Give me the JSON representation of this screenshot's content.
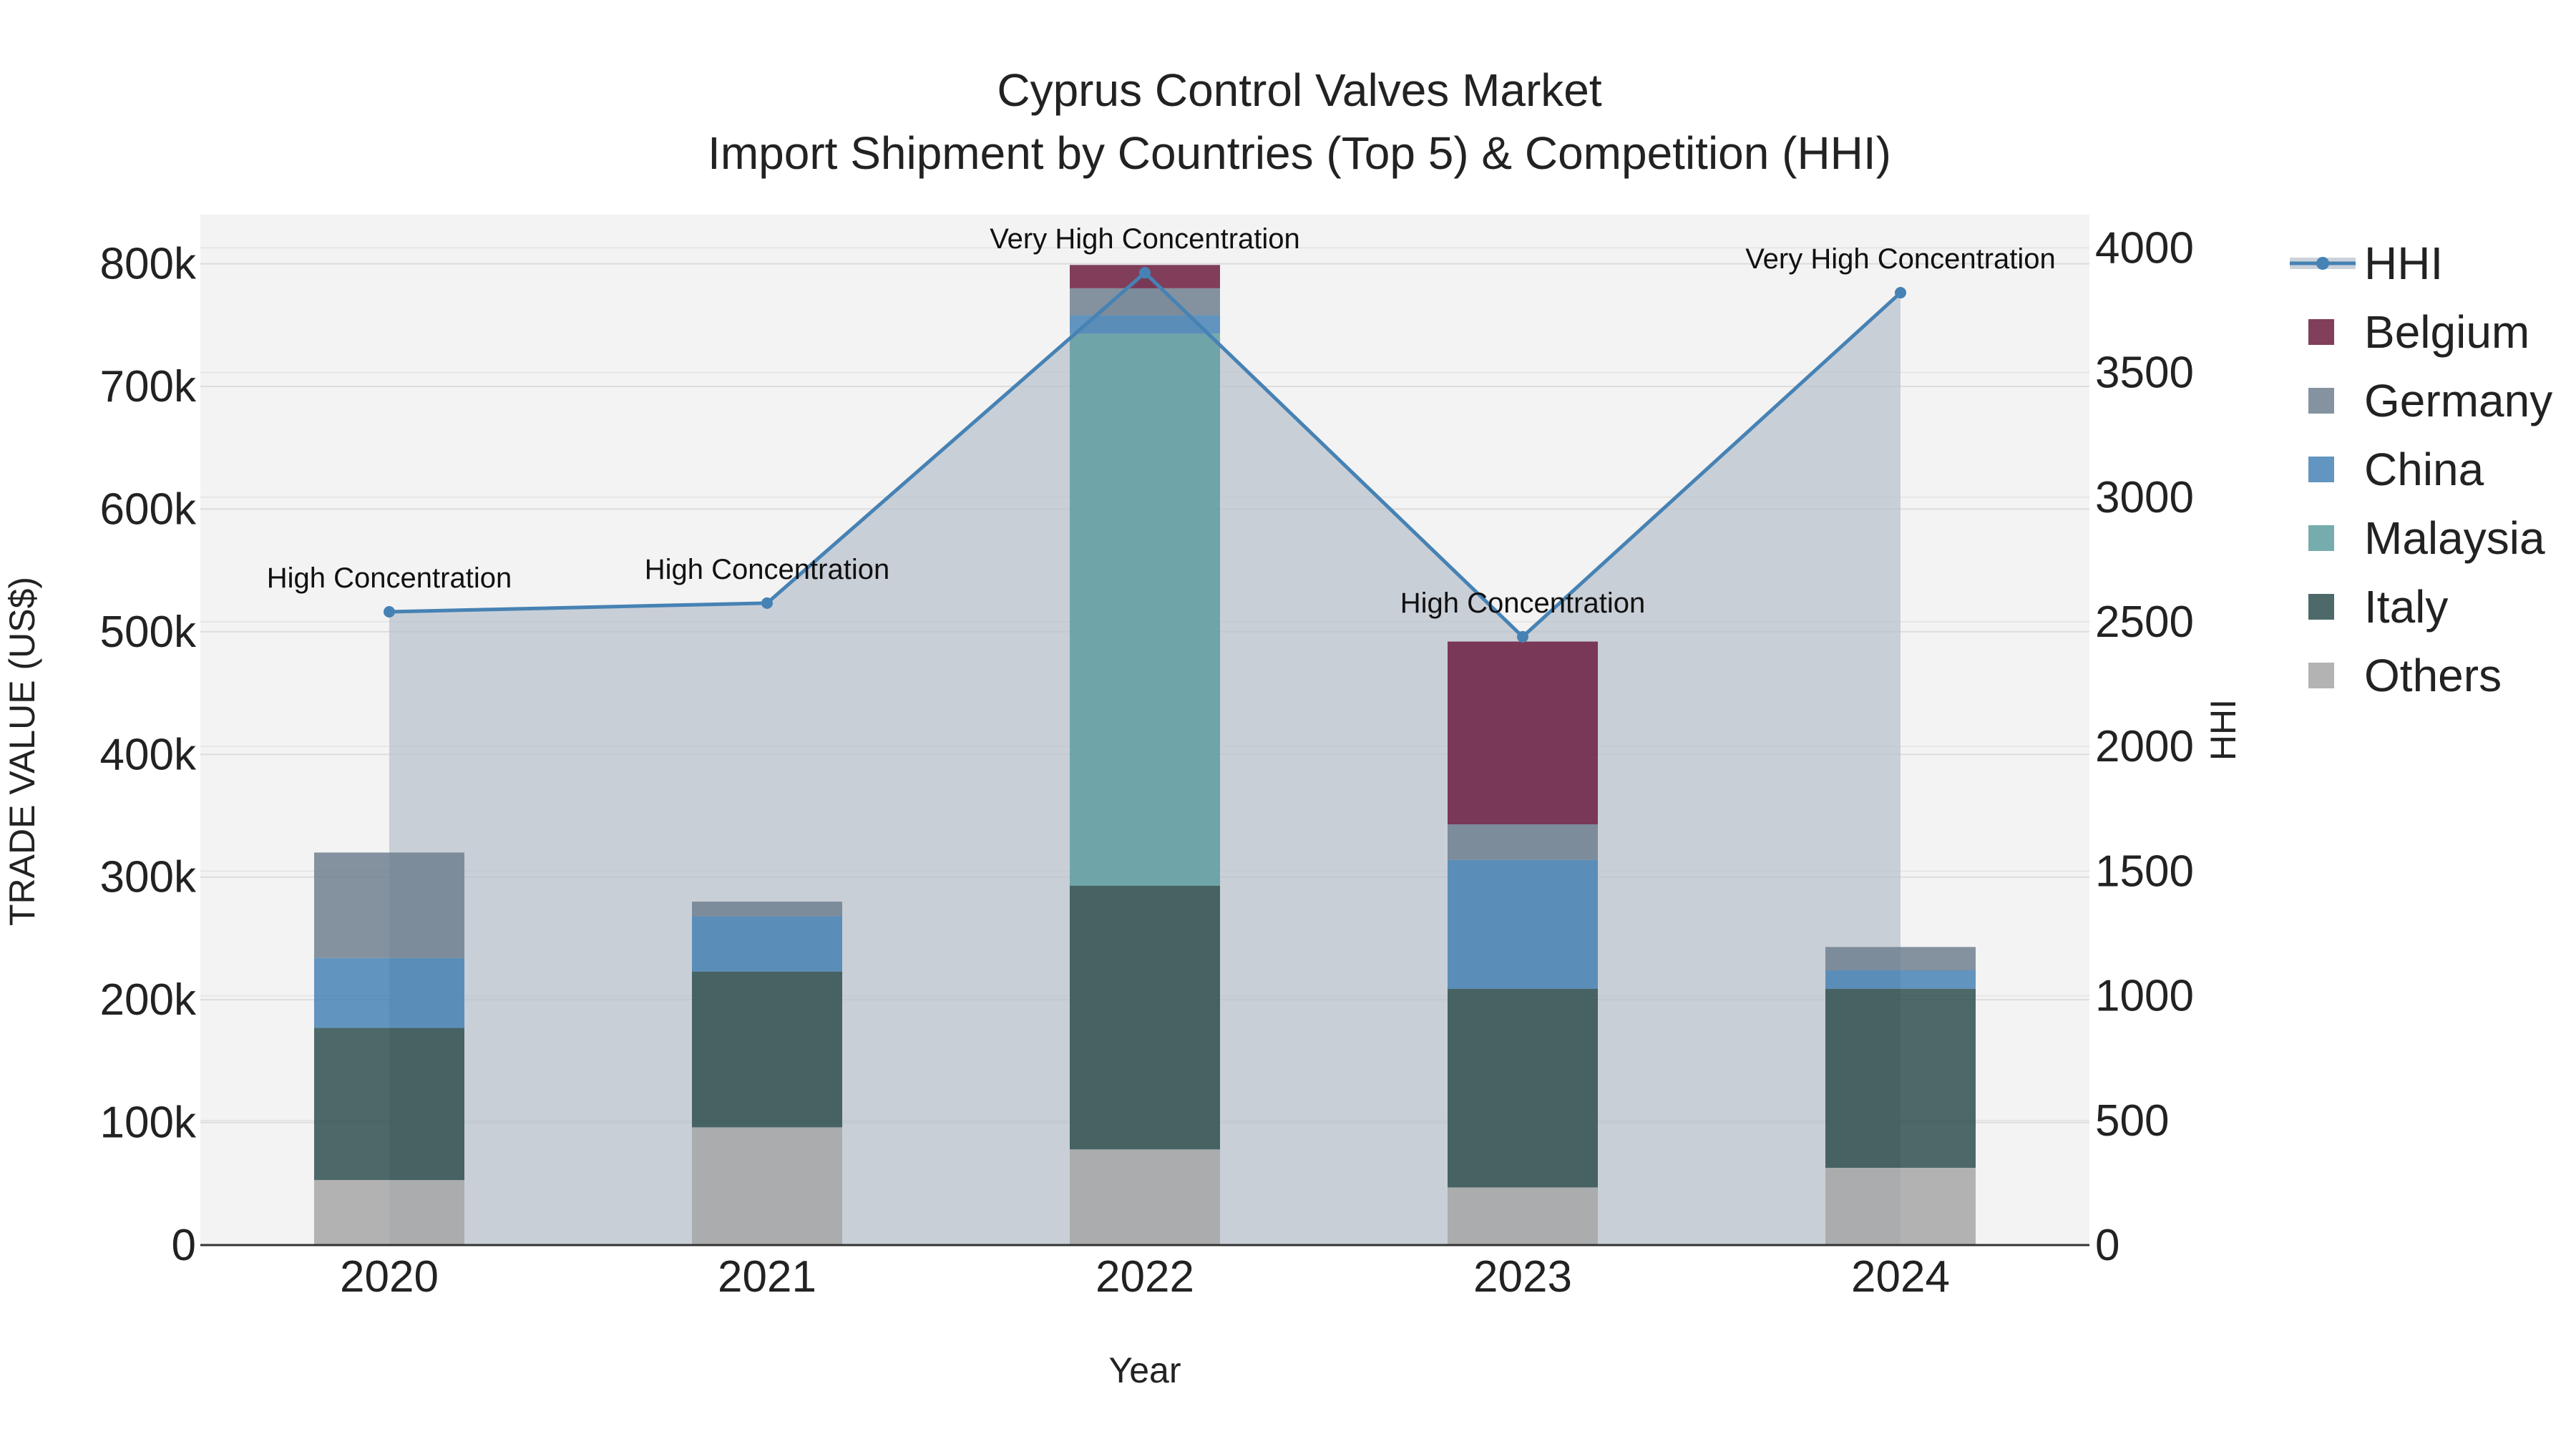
{
  "chart_data": {
    "type": "bar",
    "title": "Cyprus Control Valves Market",
    "subtitle": "Import Shipment by Countries (Top 5) & Competition (HHI)",
    "xlabel": "Year",
    "ylabel": "TRADE VALUE (US$)",
    "y2label": "HHI",
    "categories": [
      "2020",
      "2021",
      "2022",
      "2023",
      "2024"
    ],
    "ylim": [
      0,
      840000
    ],
    "y2lim": [
      0,
      4133
    ],
    "y_ticks": [
      0,
      100000,
      200000,
      300000,
      400000,
      500000,
      600000,
      700000,
      800000
    ],
    "y_tick_labels": [
      "0",
      "100k",
      "200k",
      "300k",
      "400k",
      "500k",
      "600k",
      "700k",
      "800k"
    ],
    "y2_ticks": [
      0,
      500,
      1000,
      1500,
      2000,
      2500,
      3000,
      3500,
      4000
    ],
    "y2_tick_labels": [
      "0",
      "500",
      "1000",
      "1500",
      "2000",
      "2500",
      "3000",
      "3500",
      "4000"
    ],
    "stack_order": [
      "Others",
      "Italy",
      "Malaysia",
      "China",
      "Germany",
      "Belgium"
    ],
    "series": [
      {
        "name": "Others",
        "color": "#a6a6a6",
        "values": [
          53000,
          96000,
          78000,
          47000,
          63000
        ]
      },
      {
        "name": "Italy",
        "color": "#2f4f4f",
        "values": [
          124000,
          127000,
          215000,
          162000,
          146000
        ]
      },
      {
        "name": "Malaysia",
        "color": "#5f9ea0",
        "values": [
          0,
          0,
          450000,
          0,
          0
        ]
      },
      {
        "name": "China",
        "color": "#4682b4",
        "values": [
          57000,
          45000,
          15000,
          105000,
          15000
        ]
      },
      {
        "name": "Germany",
        "color": "#708090",
        "values": [
          86000,
          12000,
          22000,
          29000,
          19000
        ]
      },
      {
        "name": "Belgium",
        "color": "#6b1d3f",
        "values": [
          0,
          0,
          19000,
          149000,
          0
        ]
      }
    ],
    "hhi": {
      "name": "HHI",
      "color": "#4682b4",
      "values": [
        2540,
        2575,
        3900,
        2440,
        3820
      ],
      "labels": [
        "High Concentration",
        "High Concentration",
        "Very High Concentration",
        "High Concentration",
        "Very High Concentration"
      ]
    },
    "legend": [
      "HHI",
      "Belgium",
      "Germany",
      "China",
      "Malaysia",
      "Italy",
      "Others"
    ],
    "legend_position": "right"
  }
}
